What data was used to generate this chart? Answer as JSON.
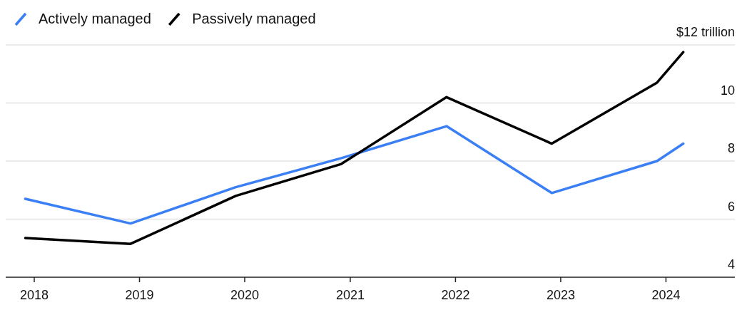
{
  "chart_data": {
    "type": "line",
    "x": [
      "2017-12-01",
      "2018-12-01",
      "2019-12-01",
      "2020-12-01",
      "2021-12-01",
      "2022-12-01",
      "2023-12-01",
      "2024-03-01"
    ],
    "series": [
      {
        "name": "Actively managed",
        "color": "#3b7ff5",
        "values": [
          6.7,
          5.85,
          7.1,
          8.1,
          9.2,
          6.9,
          8.0,
          8.6
        ]
      },
      {
        "name": "Passively managed",
        "color": "#000000",
        "values": [
          5.35,
          5.15,
          6.8,
          7.9,
          10.2,
          8.6,
          10.7,
          11.75
        ]
      }
    ],
    "xlim": [
      "2017-09-24",
      "2024-08-27"
    ],
    "xticks": [
      {
        "value": "2018-01-01",
        "label": "2018"
      },
      {
        "value": "2019-01-01",
        "label": "2019"
      },
      {
        "value": "2020-01-01",
        "label": "2020"
      },
      {
        "value": "2021-01-01",
        "label": "2021"
      },
      {
        "value": "2022-01-01",
        "label": "2022"
      },
      {
        "value": "2023-01-01",
        "label": "2023"
      },
      {
        "value": "2024-01-01",
        "label": "2024"
      }
    ],
    "ylim": [
      4,
      12
    ],
    "yticks": [
      4,
      6,
      8,
      10,
      {
        "value": 12,
        "label": "$12 trillion"
      }
    ],
    "grid": "y",
    "legend": "top left",
    "marker": "none",
    "line_style": "solid"
  }
}
